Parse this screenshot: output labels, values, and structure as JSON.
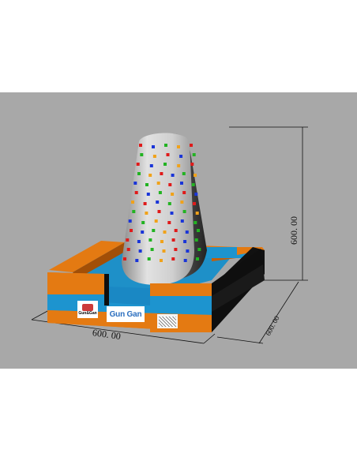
{
  "dimensions": {
    "height_label": "600. 00",
    "depth_label": "600. 00",
    "width_label": "600. 00"
  },
  "panels": {
    "left_label": "Gun&Gan",
    "center_label": "Gun Gan"
  },
  "colors": {
    "background": "#a8a8a8",
    "wall_orange": "#e47a12",
    "wall_blue": "#1d94cf",
    "floor_blue": "#1e90c8",
    "tower_light": "#dcdcdc",
    "tower_dark": "#3c3c3c",
    "hold_colors": [
      "#e01a1a",
      "#1a35d8",
      "#22b322",
      "#f0a21a"
    ]
  },
  "icons": {
    "brand_icon": "flame-circle-icon"
  }
}
